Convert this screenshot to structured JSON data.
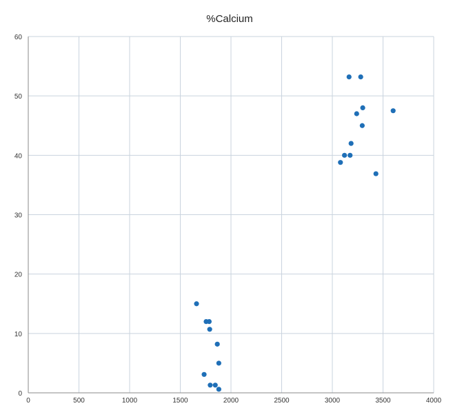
{
  "chart_data": {
    "type": "scatter",
    "title": "%Calcium",
    "xlabel": "",
    "ylabel": "",
    "xlim": [
      0,
      4000
    ],
    "ylim": [
      0,
      60
    ],
    "xticks": [
      0,
      500,
      1000,
      1500,
      2000,
      2500,
      3000,
      3500,
      4000
    ],
    "yticks": [
      0,
      10,
      20,
      30,
      40,
      50,
      60
    ],
    "grid": true,
    "legend": "none",
    "marker_color": "#1f6fb7",
    "grid_color": "#c9d3de",
    "series": [
      {
        "points": [
          {
            "x": 1660,
            "y": 15.0
          },
          {
            "x": 1755,
            "y": 12.0
          },
          {
            "x": 1785,
            "y": 12.0
          },
          {
            "x": 1790,
            "y": 10.7
          },
          {
            "x": 1865,
            "y": 8.2
          },
          {
            "x": 1880,
            "y": 5.0
          },
          {
            "x": 1735,
            "y": 3.1
          },
          {
            "x": 1795,
            "y": 1.3
          },
          {
            "x": 1845,
            "y": 1.3
          },
          {
            "x": 1880,
            "y": 0.6
          },
          {
            "x": 3165,
            "y": 53.2
          },
          {
            "x": 3280,
            "y": 53.2
          },
          {
            "x": 3300,
            "y": 48.0
          },
          {
            "x": 3240,
            "y": 47.0
          },
          {
            "x": 3600,
            "y": 47.5
          },
          {
            "x": 3295,
            "y": 45.0
          },
          {
            "x": 3185,
            "y": 42.0
          },
          {
            "x": 3120,
            "y": 40.0
          },
          {
            "x": 3175,
            "y": 40.0
          },
          {
            "x": 3080,
            "y": 38.8
          },
          {
            "x": 3430,
            "y": 36.9
          }
        ]
      }
    ]
  }
}
